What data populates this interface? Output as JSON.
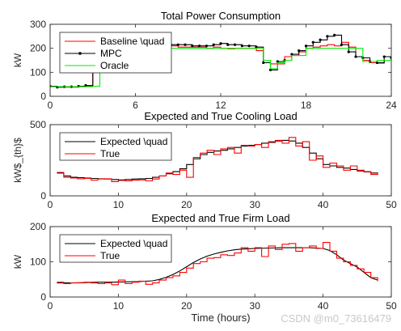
{
  "figure": {
    "watermark": "CSDN @m0_73616479"
  },
  "chart_data": [
    {
      "type": "line",
      "title": "Total Power Consumption",
      "xlabel": "",
      "ylabel": "kW",
      "xlim": [
        0,
        24
      ],
      "ylim": [
        0,
        300
      ],
      "xticks": [
        0,
        6,
        12,
        18,
        24
      ],
      "yticks": [
        0,
        100,
        200,
        300
      ],
      "legend": {
        "location": "top-left",
        "entries": [
          "Baseline \\quad",
          "MPC",
          "Oracle"
        ]
      },
      "series": [
        {
          "name": "Baseline \\quad",
          "color": "#ff0000",
          "step": true,
          "markers": false,
          "x": [
            0,
            0.5,
            1,
            1.5,
            2,
            2.5,
            3,
            3.5,
            4,
            4.5,
            5,
            5.5,
            6,
            6.5,
            7,
            7.5,
            8,
            8.5,
            9,
            9.5,
            10,
            10.5,
            11,
            11.5,
            12,
            12.5,
            13,
            13.5,
            14,
            14.5,
            15,
            15.5,
            16,
            16.5,
            17,
            17.5,
            18,
            18.5,
            19,
            19.5,
            20,
            20.5,
            21,
            21.5,
            22,
            22.5,
            23,
            23.5,
            24
          ],
          "values": [
            40,
            38,
            38,
            38,
            40,
            42,
            130,
            150,
            165,
            155,
            165,
            175,
            200,
            200,
            200,
            198,
            170,
            210,
            205,
            205,
            205,
            205,
            200,
            205,
            200,
            198,
            200,
            200,
            200,
            190,
            150,
            135,
            135,
            165,
            170,
            185,
            200,
            205,
            210,
            215,
            210,
            225,
            205,
            165,
            150,
            140,
            138,
            150,
            160
          ]
        },
        {
          "name": "MPC",
          "color": "#000000",
          "step": true,
          "markers": true,
          "x": [
            0,
            0.5,
            1,
            1.5,
            2,
            2.5,
            3,
            3.5,
            4,
            4.5,
            5,
            5.5,
            6,
            6.5,
            7,
            7.5,
            8,
            8.5,
            9,
            9.5,
            10,
            10.5,
            11,
            11.5,
            12,
            12.5,
            13,
            13.5,
            14,
            14.5,
            15,
            15.5,
            16,
            16.5,
            17,
            17.5,
            18,
            18.5,
            19,
            19.5,
            20,
            20.5,
            21,
            21.5,
            22,
            22.5,
            23,
            23.5,
            24
          ],
          "values": [
            42,
            38,
            40,
            40,
            42,
            45,
            130,
            150,
            160,
            170,
            185,
            190,
            205,
            205,
            205,
            210,
            210,
            215,
            215,
            215,
            210,
            210,
            210,
            215,
            220,
            215,
            215,
            210,
            210,
            205,
            140,
            110,
            145,
            150,
            175,
            190,
            210,
            225,
            235,
            250,
            255,
            215,
            185,
            165,
            160,
            145,
            140,
            165,
            160
          ]
        },
        {
          "name": "Oracle",
          "color": "#00ee00",
          "step": true,
          "markers": false,
          "x": [
            0,
            2,
            3,
            3.5,
            4,
            4.5,
            5,
            6,
            8,
            10,
            12,
            14,
            14.5,
            15,
            15.5,
            16,
            16.5,
            17,
            18,
            19,
            20,
            21,
            22,
            23,
            24
          ],
          "values": [
            40,
            40,
            42,
            130,
            150,
            160,
            175,
            200,
            200,
            200,
            200,
            200,
            200,
            150,
            115,
            140,
            150,
            170,
            200,
            200,
            200,
            200,
            145,
            150,
            150
          ]
        }
      ]
    },
    {
      "type": "line",
      "title": "Expected and True Cooling Load",
      "xlabel": "",
      "ylabel": "kW$_{th}$",
      "xlim": [
        0,
        50
      ],
      "ylim": [
        0,
        500
      ],
      "xticks": [
        0,
        10,
        20,
        30,
        40,
        50
      ],
      "yticks": [
        0,
        500
      ],
      "legend": {
        "location": "top-left",
        "entries": [
          "Expected \\quad",
          "True"
        ]
      },
      "series": [
        {
          "name": "Expected \\quad",
          "color": "#000000",
          "step": true,
          "x": [
            1,
            2,
            3,
            4,
            5,
            6,
            7,
            8,
            9,
            10,
            11,
            12,
            13,
            14,
            15,
            16,
            17,
            18,
            19,
            20,
            21,
            22,
            23,
            24,
            25,
            26,
            27,
            28,
            29,
            30,
            31,
            32,
            33,
            34,
            35,
            36,
            37,
            38,
            39,
            40,
            41,
            42,
            43,
            44,
            45,
            46,
            47,
            48
          ],
          "values": [
            160,
            140,
            130,
            128,
            125,
            122,
            120,
            118,
            115,
            112,
            115,
            118,
            120,
            122,
            130,
            140,
            155,
            170,
            190,
            220,
            260,
            290,
            305,
            315,
            320,
            330,
            340,
            350,
            355,
            360,
            370,
            375,
            385,
            390,
            385,
            370,
            340,
            300,
            260,
            220,
            210,
            200,
            195,
            185,
            175,
            168,
            160,
            155
          ]
        },
        {
          "name": "True",
          "color": "#ff0000",
          "step": true,
          "x": [
            1,
            2,
            3,
            4,
            5,
            6,
            7,
            8,
            9,
            10,
            11,
            12,
            13,
            14,
            15,
            16,
            17,
            18,
            19,
            20,
            21,
            22,
            23,
            24,
            25,
            26,
            27,
            28,
            29,
            30,
            31,
            32,
            33,
            34,
            35,
            36,
            37,
            38,
            39,
            40,
            41,
            42,
            43,
            44,
            45,
            46,
            47,
            48
          ],
          "values": [
            165,
            130,
            125,
            120,
            122,
            110,
            118,
            120,
            100,
            108,
            105,
            110,
            112,
            105,
            118,
            140,
            160,
            150,
            180,
            130,
            270,
            300,
            320,
            290,
            330,
            340,
            300,
            355,
            350,
            360,
            340,
            380,
            390,
            370,
            410,
            350,
            380,
            250,
            280,
            200,
            230,
            210,
            180,
            210,
            180,
            170,
            150,
            160
          ]
        }
      ]
    },
    {
      "type": "line",
      "title": "Expected and True Firm Load",
      "xlabel": "Time (hours)",
      "ylabel": "kW",
      "xlim": [
        0,
        50
      ],
      "ylim": [
        0,
        200
      ],
      "xticks": [
        0,
        10,
        20,
        30,
        40,
        50
      ],
      "yticks": [
        0,
        100,
        200
      ],
      "legend": {
        "location": "top-left",
        "entries": [
          "Expected \\quad",
          "True"
        ]
      },
      "series": [
        {
          "name": "Expected \\quad",
          "color": "#000000",
          "step": false,
          "x": [
            1,
            3,
            5,
            7,
            9,
            11,
            13,
            15,
            16,
            17,
            18,
            19,
            20,
            21,
            22,
            23,
            24,
            25,
            26,
            27,
            28,
            29,
            30,
            32,
            34,
            36,
            38,
            40,
            41,
            42,
            43,
            44,
            45,
            46,
            47,
            48
          ],
          "values": [
            40,
            40,
            41,
            42,
            42,
            43,
            44,
            46,
            50,
            56,
            64,
            74,
            86,
            98,
            108,
            116,
            122,
            127,
            131,
            134,
            136,
            137,
            138,
            139,
            140,
            140,
            140,
            138,
            132,
            120,
            105,
            95,
            85,
            70,
            55,
            48
          ]
        },
        {
          "name": "True",
          "color": "#ff0000",
          "step": true,
          "x": [
            1,
            2,
            3,
            4,
            5,
            6,
            7,
            8,
            9,
            10,
            11,
            12,
            13,
            14,
            15,
            16,
            17,
            18,
            19,
            20,
            21,
            22,
            23,
            24,
            25,
            26,
            27,
            28,
            29,
            30,
            31,
            32,
            33,
            34,
            35,
            36,
            37,
            38,
            39,
            40,
            41,
            42,
            43,
            44,
            45,
            46,
            47,
            48
          ],
          "values": [
            42,
            38,
            40,
            40,
            42,
            40,
            38,
            40,
            35,
            48,
            38,
            42,
            45,
            36,
            40,
            48,
            55,
            60,
            70,
            82,
            95,
            100,
            110,
            112,
            120,
            118,
            125,
            140,
            130,
            140,
            115,
            145,
            135,
            150,
            152,
            130,
            140,
            145,
            138,
            155,
            130,
            110,
            100,
            90,
            80,
            70,
            55,
            45
          ]
        }
      ]
    }
  ]
}
